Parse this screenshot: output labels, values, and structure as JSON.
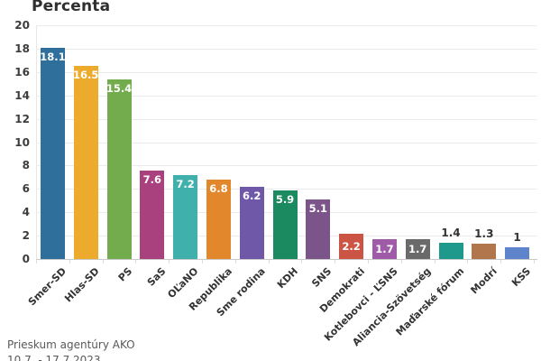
{
  "title": "Percenta",
  "footer": {
    "source": "Prieskum agentúry AKO",
    "date_range": "10.7. - 17.7.2023"
  },
  "chart_data": {
    "type": "bar",
    "title": "Percenta",
    "categories": [
      "Smer-SD",
      "Hlas-SD",
      "PS",
      "SaS",
      "OĽaNO",
      "Republika",
      "Sme rodina",
      "KDH",
      "SNS",
      "Demokrati",
      "Kotlebovci - ĽSNS",
      "Aliancia-Szövetség",
      "Maďarské fórum",
      "Modrí",
      "KSS"
    ],
    "values": [
      18.1,
      16.5,
      15.4,
      7.6,
      7.2,
      6.8,
      6.2,
      5.9,
      5.1,
      2.2,
      1.7,
      1.7,
      1.4,
      1.3,
      1
    ],
    "value_labels": [
      "18.1",
      "16.5",
      "15.4",
      "7.6",
      "7.2",
      "6.8",
      "6.2",
      "5.9",
      "5.1",
      "2.2",
      "1.7",
      "1.7",
      "1.4",
      "1.3",
      "1"
    ],
    "bar_colors": [
      "#2e6f9c",
      "#ecab2d",
      "#72ac4d",
      "#a8417d",
      "#3fb0ac",
      "#e2872b",
      "#6f58a8",
      "#1b8a60",
      "#7b5589",
      "#cc5445",
      "#a05ba8",
      "#6a6a6a",
      "#1e998c",
      "#b1764b",
      "#5e85cb"
    ],
    "xlabel": "",
    "ylabel": "",
    "ylim": [
      0,
      20
    ],
    "yticks": [
      0,
      2,
      4,
      6,
      8,
      10,
      12,
      14,
      16,
      18,
      20
    ],
    "grid": "horizontal",
    "legend": "none",
    "annotations": {
      "value_label_inside_color": "#ffffff",
      "value_label_above_color": "#333333",
      "source": "Prieskum agentúry AKO"
    }
  }
}
